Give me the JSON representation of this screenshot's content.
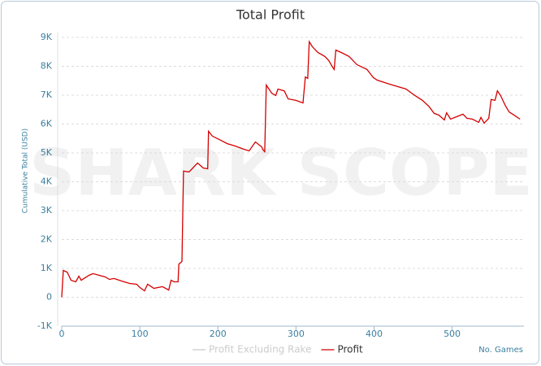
{
  "chart_data": {
    "type": "line",
    "title": "Total Profit",
    "ylabel": "Cumulative Total (USD)",
    "xlabel": "No. Games",
    "watermark": "SHARK SCOPE",
    "xlim": [
      0,
      592
    ],
    "xticks": [
      0,
      100,
      200,
      300,
      400,
      500
    ],
    "ylim": [
      -1000,
      9000
    ],
    "yticks": [
      {
        "value": -1000,
        "label": "-1K"
      },
      0,
      {
        "value": 1000,
        "label": "1K"
      },
      {
        "value": 2000,
        "label": "2K"
      },
      {
        "value": 3000,
        "label": "3K"
      },
      {
        "value": 4000,
        "label": "4K"
      },
      {
        "value": 5000,
        "label": "5K"
      },
      {
        "value": 6000,
        "label": "6K"
      },
      {
        "value": 7000,
        "label": "7K"
      },
      {
        "value": 8000,
        "label": "8K"
      },
      {
        "value": 9000,
        "label": "9K"
      }
    ],
    "grid": true,
    "series": [
      {
        "name": "Profit Excluding Rake",
        "color": "#cccccc",
        "visible": false,
        "x": [],
        "values": []
      },
      {
        "name": "Profit",
        "color": "#d40000",
        "visible": true,
        "x": [
          0,
          2,
          7,
          12,
          18,
          22,
          25,
          35,
          40,
          56,
          61,
          67,
          77,
          87,
          96,
          100,
          106,
          110,
          118,
          129,
          137,
          140,
          144,
          149,
          150,
          154,
          156,
          163,
          167,
          174,
          181,
          187,
          188,
          193,
          202,
          212,
          222,
          233,
          240,
          248,
          256,
          258,
          260,
          262,
          269,
          274,
          277,
          285,
          290,
          300,
          309,
          312,
          315,
          317,
          321,
          328,
          337,
          342,
          347,
          349,
          351,
          358,
          368,
          378,
          391,
          399,
          404,
          420,
          441,
          451,
          462,
          470,
          477,
          483,
          490,
          493,
          498,
          508,
          514,
          519,
          526,
          534,
          537,
          541,
          547,
          550,
          555,
          558,
          562,
          568,
          573,
          581,
          587
        ],
        "values": [
          0,
          930,
          870,
          590,
          535,
          730,
          590,
          760,
          820,
          700,
          620,
          650,
          560,
          480,
          450,
          340,
          225,
          450,
          310,
          370,
          250,
          590,
          535,
          535,
          1150,
          1240,
          4370,
          4340,
          4450,
          4650,
          4480,
          4450,
          5750,
          5580,
          5460,
          5320,
          5240,
          5130,
          5070,
          5380,
          5210,
          5100,
          5040,
          7350,
          7070,
          6990,
          7210,
          7150,
          6870,
          6820,
          6730,
          7630,
          7580,
          8850,
          8680,
          8480,
          8340,
          8200,
          7970,
          7890,
          8560,
          8480,
          8340,
          8060,
          7890,
          7610,
          7520,
          7380,
          7210,
          7010,
          6820,
          6620,
          6370,
          6310,
          6140,
          6390,
          6170,
          6280,
          6340,
          6200,
          6170,
          6060,
          6230,
          6030,
          6200,
          6850,
          6820,
          7150,
          6990,
          6650,
          6420,
          6280,
          6170
        ]
      }
    ]
  }
}
